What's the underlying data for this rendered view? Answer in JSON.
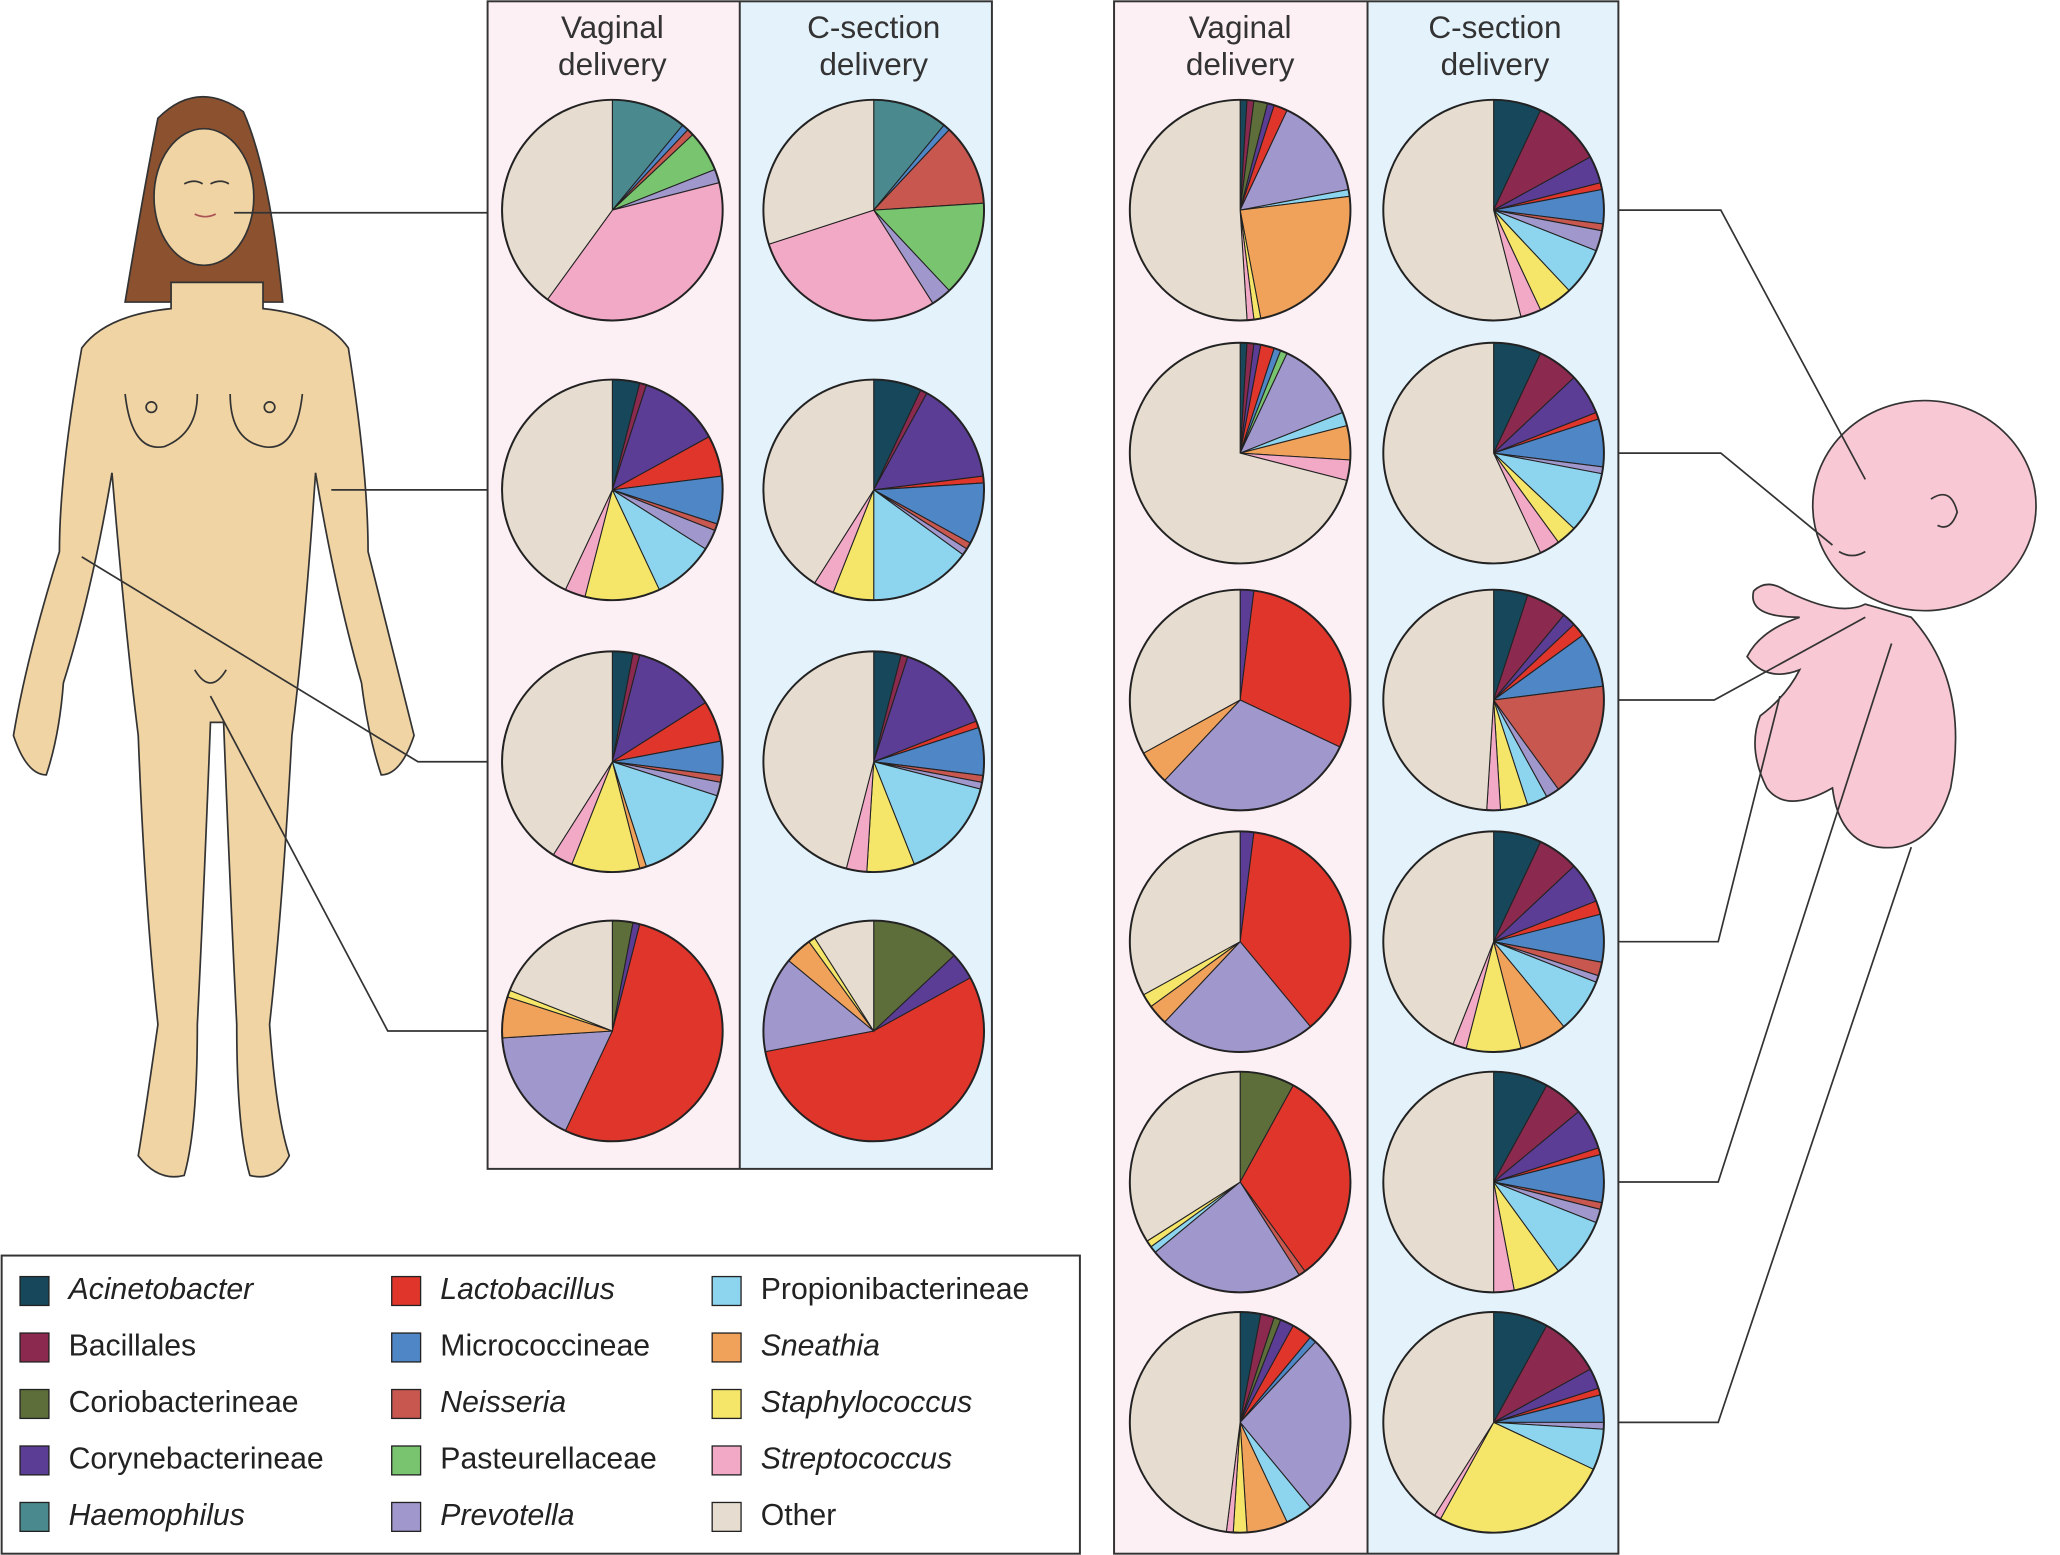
{
  "panels": [
    {
      "columns": [
        "Vaginal delivery",
        "C-section delivery"
      ]
    },
    {
      "columns": [
        "Vaginal delivery",
        "C-section delivery"
      ]
    }
  ],
  "legend": {
    "categories": [
      "Acinetobacter",
      "Bacillales",
      "Coriobacterineae",
      "Corynebacterineae",
      "Haemophilus",
      "Lactobacillus",
      "Micrococcineae",
      "Neisseria",
      "Pasteurellaceae",
      "Prevotella",
      "Propionibacterineae",
      "Sneathia",
      "Staphylococcus",
      "Streptococcus",
      "Other"
    ],
    "colors": [
      "#17475a",
      "#8b2a4e",
      "#5e6e3a",
      "#5b3d96",
      "#4a8a8e",
      "#e0352b",
      "#4f86c6",
      "#c8574f",
      "#79c46e",
      "#a097cc",
      "#8dd5ef",
      "#f0a25a",
      "#f5e66a",
      "#f2a9c6",
      "#e6ddd0"
    ],
    "italic": [
      true,
      false,
      false,
      false,
      true,
      true,
      false,
      true,
      false,
      true,
      false,
      true,
      true,
      true,
      false
    ]
  },
  "chart_data": [
    {
      "type": "pie",
      "values": [
        0,
        0,
        0,
        0,
        11,
        0,
        1,
        1,
        6,
        2,
        0,
        0,
        0,
        39,
        40
      ]
    },
    {
      "type": "pie",
      "values": [
        4,
        1,
        0,
        12,
        0,
        6,
        7,
        1,
        0,
        3,
        9,
        0,
        11,
        3,
        43
      ]
    },
    {
      "type": "pie",
      "values": [
        3,
        1,
        0,
        12,
        0,
        6,
        5,
        1,
        0,
        2,
        15,
        1,
        10,
        3,
        41
      ]
    },
    {
      "type": "pie",
      "values": [
        0,
        0,
        3,
        1,
        0,
        53,
        0,
        0,
        0,
        17,
        0,
        6,
        1,
        0,
        19
      ]
    },
    {
      "type": "pie",
      "values": [
        0,
        0,
        0,
        0,
        11,
        0,
        1,
        12,
        14,
        3,
        0,
        0,
        0,
        29,
        30
      ]
    },
    {
      "type": "pie",
      "values": [
        7,
        1,
        0,
        15,
        0,
        1,
        9,
        1,
        0,
        1,
        15,
        0,
        6,
        3,
        41
      ]
    },
    {
      "type": "pie",
      "values": [
        4,
        1,
        0,
        14,
        0,
        1,
        7,
        1,
        0,
        1,
        15,
        0,
        7,
        3,
        46
      ]
    },
    {
      "type": "pie",
      "values": [
        0,
        0,
        13,
        4,
        0,
        55,
        0,
        0,
        0,
        14,
        0,
        4,
        1,
        0,
        9
      ]
    },
    {
      "type": "pie",
      "values": [
        1,
        1,
        2,
        1,
        0,
        2,
        0,
        0,
        0,
        15,
        1,
        24,
        1,
        1,
        51
      ]
    },
    {
      "type": "pie",
      "values": [
        1,
        1,
        0,
        1,
        0,
        2,
        1,
        0,
        1,
        12,
        2,
        5,
        0,
        3,
        71
      ]
    },
    {
      "type": "pie",
      "values": [
        0,
        0,
        0,
        2,
        0,
        30,
        0,
        0,
        0,
        30,
        0,
        5,
        0,
        0,
        33
      ]
    },
    {
      "type": "pie",
      "values": [
        0,
        0,
        0,
        2,
        0,
        37,
        0,
        0,
        0,
        23,
        0,
        3,
        2,
        0,
        33
      ]
    },
    {
      "type": "pie",
      "values": [
        0,
        0,
        8,
        0,
        0,
        32,
        0,
        1,
        0,
        23,
        1,
        0,
        1,
        0,
        34
      ]
    },
    {
      "type": "pie",
      "values": [
        3,
        2,
        1,
        2,
        0,
        3,
        1,
        0,
        0,
        27,
        4,
        6,
        2,
        1,
        48
      ]
    },
    {
      "type": "pie",
      "values": [
        7,
        10,
        0,
        4,
        0,
        1,
        5,
        1,
        0,
        3,
        7,
        0,
        5,
        3,
        54
      ]
    },
    {
      "type": "pie",
      "values": [
        7,
        6,
        0,
        6,
        0,
        1,
        7,
        0,
        0,
        1,
        9,
        0,
        3,
        3,
        57
      ]
    },
    {
      "type": "pie",
      "values": [
        5,
        6,
        0,
        2,
        0,
        2,
        8,
        17,
        0,
        2,
        3,
        0,
        4,
        2,
        49
      ]
    },
    {
      "type": "pie",
      "values": [
        7,
        6,
        0,
        6,
        0,
        2,
        7,
        2,
        0,
        1,
        8,
        7,
        8,
        2,
        44
      ]
    },
    {
      "type": "pie",
      "values": [
        8,
        6,
        0,
        6,
        0,
        1,
        7,
        1,
        0,
        2,
        9,
        0,
        7,
        3,
        50
      ]
    },
    {
      "type": "pie",
      "values": [
        8,
        9,
        0,
        3,
        0,
        1,
        4,
        0,
        0,
        1,
        6,
        0,
        26,
        1,
        41
      ]
    }
  ]
}
